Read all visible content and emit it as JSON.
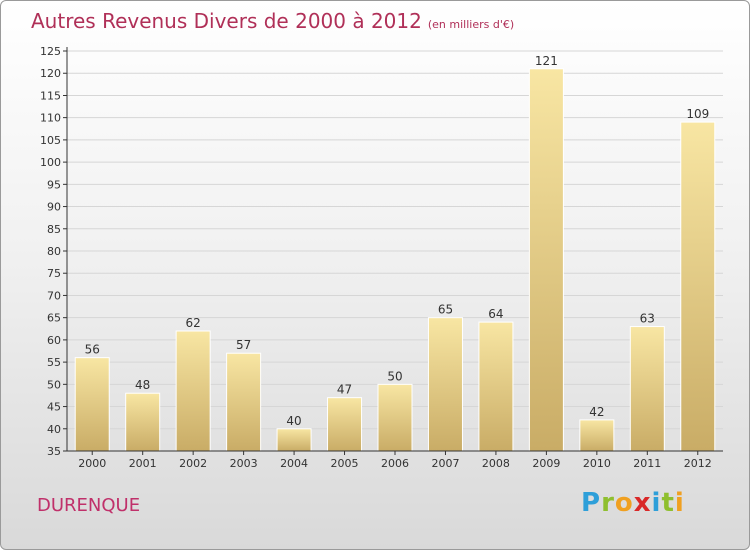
{
  "header": {
    "title": "Autres Revenus Divers de 2000 à 2012",
    "subtitle": "(en milliers d'€)"
  },
  "footer": {
    "location": "DURENQUE",
    "logo": {
      "letters": [
        "P",
        "r",
        "o",
        "x",
        "i",
        "t",
        "i"
      ],
      "colors": [
        "#2e9fd9",
        "#8fbf2e",
        "#f0a020",
        "#d92828",
        "#2e9fd9",
        "#8fbf2e",
        "#f0a020"
      ]
    }
  },
  "colors": {
    "bar_light": "#f8e6a3",
    "bar_dark": "#c9ac66",
    "axis": "#333333",
    "grid": "#d6d6d6",
    "title": "#b03058"
  },
  "chart_data": {
    "type": "bar",
    "title": "Autres Revenus Divers de 2000 à 2012",
    "xlabel": "",
    "ylabel": "",
    "categories": [
      "2000",
      "2001",
      "2002",
      "2003",
      "2004",
      "2005",
      "2006",
      "2007",
      "2008",
      "2009",
      "2010",
      "2011",
      "2012"
    ],
    "values": [
      56,
      48,
      62,
      57,
      40,
      47,
      50,
      65,
      64,
      121,
      42,
      63,
      109
    ],
    "ylim": [
      35,
      125
    ],
    "yticks": [
      35,
      40,
      45,
      50,
      55,
      60,
      65,
      70,
      75,
      80,
      85,
      90,
      95,
      100,
      105,
      110,
      115,
      120,
      125
    ],
    "grid": true,
    "data_labels": true
  }
}
